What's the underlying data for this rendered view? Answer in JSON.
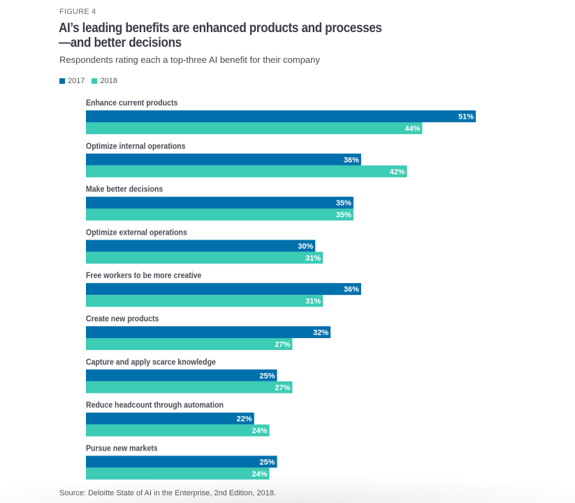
{
  "figure_label": "FIGURE 4",
  "colors": {
    "2017": "#0070ac",
    "2018": "#3ccbb4",
    "label_text": "#4a4a55",
    "value_text": "#ffffff"
  },
  "chart_data": {
    "type": "bar",
    "orientation": "horizontal",
    "title": "AI’s leading benefits are enhanced products and processes—and better decisions",
    "subtitle": "Respondents rating each a top-three AI benefit for their company",
    "xlabel": "",
    "ylabel": "",
    "unit": "%",
    "xlim": [
      0,
      51
    ],
    "grid": false,
    "legend_position": "top-left",
    "categories": [
      "Enhance current products",
      "Optimize internal operations",
      "Make better decisions",
      "Optimize external operations",
      "Free workers to be more creative",
      "Create new products",
      "Capture and apply scarce knowledge",
      "Reduce headcount through automation",
      "Pursue new markets"
    ],
    "series": [
      {
        "name": "2017",
        "values": [
          51,
          36,
          35,
          30,
          36,
          32,
          25,
          22,
          25
        ]
      },
      {
        "name": "2018",
        "values": [
          44,
          42,
          35,
          31,
          31,
          27,
          27,
          24,
          24
        ]
      }
    ]
  },
  "source": "Source: Deloitte State of AI in the Enterprise, 2nd Edition, 2018."
}
